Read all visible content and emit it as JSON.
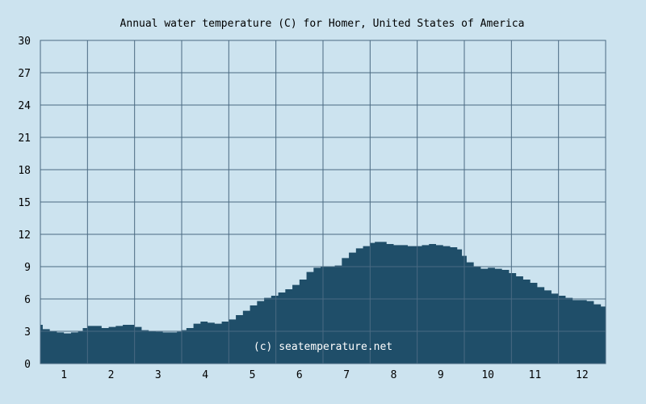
{
  "chart_data": {
    "type": "area",
    "title": "Annual water temperature (C) for Homer, United States of America",
    "xlabel": "",
    "ylabel": "",
    "ylim": [
      0,
      30
    ],
    "yticks": [
      "0",
      "3",
      "6",
      "9",
      "12",
      "15",
      "18",
      "21",
      "24",
      "27",
      "30"
    ],
    "xlim": [
      0.5,
      12.5
    ],
    "xticks": [
      "1",
      "2",
      "3",
      "4",
      "5",
      "6",
      "7",
      "8",
      "9",
      "10",
      "11",
      "12"
    ],
    "grid": true,
    "legend": "none",
    "watermark": "(c) seatemperature.net",
    "colors": {
      "background": "#cce3ef",
      "fill": "#1f4e69",
      "grid": "#4a6a82"
    },
    "series": [
      {
        "x": [
          0.5,
          0.55,
          0.7,
          0.85,
          1.0,
          1.15,
          1.3,
          1.4,
          1.5,
          1.65,
          1.8,
          1.95,
          2.1,
          2.25,
          2.35,
          2.5,
          2.65,
          2.8,
          2.95,
          3.1,
          3.25,
          3.4,
          3.5,
          3.6,
          3.75,
          3.9,
          4.05,
          4.2,
          4.35,
          4.5,
          4.65,
          4.8,
          4.95,
          5.1,
          5.25,
          5.4,
          5.55,
          5.7,
          5.85,
          6.0,
          6.15,
          6.3,
          6.45,
          6.6,
          6.75,
          6.9,
          7.05,
          7.2,
          7.35,
          7.5,
          7.6,
          7.7,
          7.85,
          8.0,
          8.15,
          8.3,
          8.45,
          8.6,
          8.75,
          8.9,
          9.05,
          9.2,
          9.35,
          9.45,
          9.55,
          9.7,
          9.85,
          10.0,
          10.15,
          10.3,
          10.45,
          10.6,
          10.75,
          10.9,
          11.05,
          11.2,
          11.35,
          11.5,
          11.65,
          11.8,
          11.95,
          12.1,
          12.25,
          12.4,
          12.5
        ],
        "y": [
          3.6,
          3.2,
          3.0,
          2.9,
          2.8,
          2.9,
          3.0,
          3.3,
          3.5,
          3.5,
          3.3,
          3.4,
          3.5,
          3.6,
          3.6,
          3.4,
          3.1,
          3.0,
          2.95,
          2.9,
          2.9,
          2.95,
          3.1,
          3.3,
          3.7,
          3.9,
          3.8,
          3.7,
          3.9,
          4.1,
          4.5,
          4.9,
          5.4,
          5.8,
          6.1,
          6.3,
          6.6,
          6.9,
          7.3,
          7.8,
          8.5,
          8.9,
          9.0,
          9.0,
          9.1,
          9.8,
          10.3,
          10.7,
          10.9,
          11.2,
          11.3,
          11.3,
          11.1,
          11.0,
          11.0,
          10.9,
          10.9,
          11.0,
          11.1,
          11.0,
          10.9,
          10.8,
          10.6,
          10.0,
          9.4,
          9.0,
          8.8,
          8.9,
          8.8,
          8.7,
          8.4,
          8.1,
          7.8,
          7.5,
          7.1,
          6.8,
          6.5,
          6.3,
          6.1,
          5.9,
          5.9,
          5.8,
          5.5,
          5.3,
          5.3
        ]
      }
    ]
  }
}
